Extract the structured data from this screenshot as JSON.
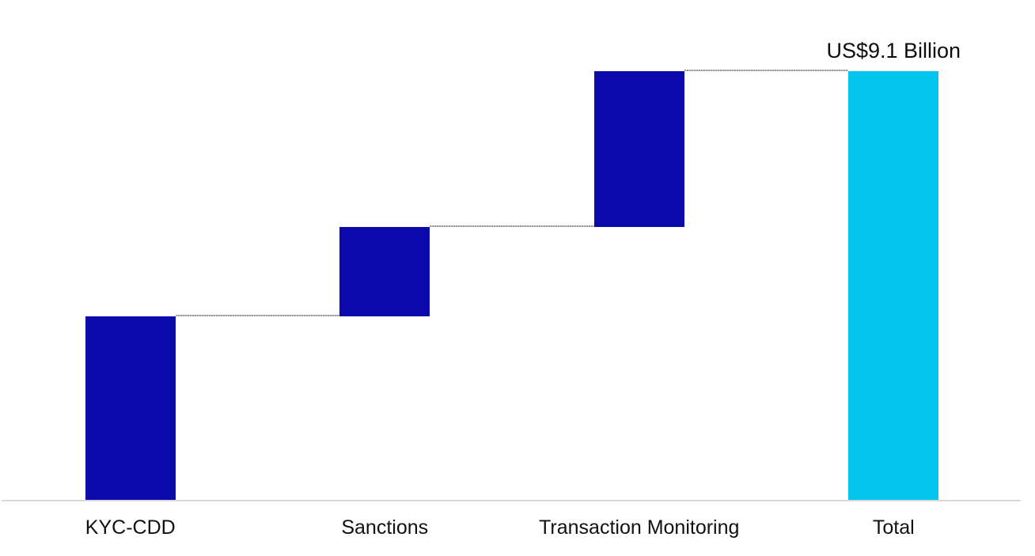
{
  "chart_data": {
    "type": "bar",
    "subtype": "waterfall",
    "categories": [
      "KYC-CDD",
      "Sanctions",
      "Transaction Monitoring",
      "Total"
    ],
    "values": [
      3.9,
      1.9,
      3.3,
      9.1
    ],
    "roles": [
      "increase",
      "increase",
      "increase",
      "total"
    ],
    "total_label": "US$9.1 Billion",
    "title": "",
    "xlabel": "",
    "ylabel": "",
    "ylim": [
      0,
      9.1
    ],
    "grid": false,
    "legend": false,
    "connectors": true
  },
  "colors": {
    "increase_bar": "#0b0bac",
    "total_bar": "#06c6ef",
    "connector": "#a6a6a6",
    "axis_line": "#d9d9d9",
    "label_text": "#111111"
  }
}
